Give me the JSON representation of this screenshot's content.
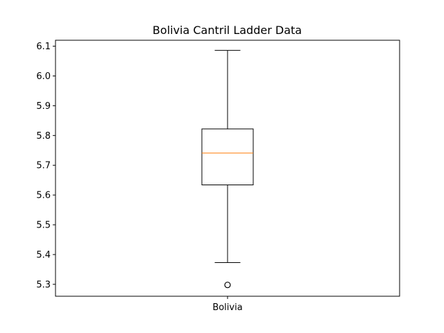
{
  "chart_data": {
    "type": "box",
    "title": "Bolivia Cantril Ladder Data",
    "xlabel": "",
    "ylabel": "",
    "categories": [
      "Bolivia"
    ],
    "series": [
      {
        "whisker_low": 5.373,
        "q1": 5.634,
        "median": 5.741,
        "q3": 5.822,
        "whisker_high": 6.086,
        "outliers": [
          5.298
        ]
      }
    ],
    "ylim": [
      5.26,
      6.12
    ],
    "yticks": [
      5.3,
      5.4,
      5.5,
      5.6,
      5.7,
      5.8,
      5.9,
      6.0,
      6.1
    ],
    "ytick_labels": [
      "5.3",
      "5.4",
      "5.5",
      "5.6",
      "5.7",
      "5.8",
      "5.9",
      "6.0",
      "6.1"
    ],
    "grid": false,
    "colors": {
      "box": "#000000",
      "median": "#ff7f0e",
      "outlier": "#000000"
    }
  }
}
